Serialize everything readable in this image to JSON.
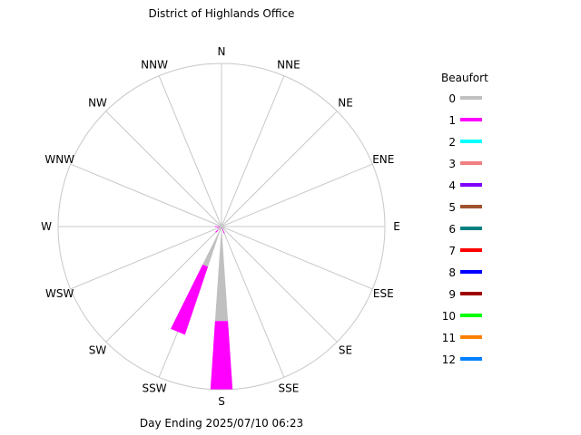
{
  "chart_data": {
    "type": "wind-rose",
    "title": "District of Highlands Office",
    "footer": "Day Ending 2025/07/10 06:23",
    "directions": [
      "N",
      "NNE",
      "NE",
      "ENE",
      "E",
      "ESE",
      "SE",
      "SSE",
      "S",
      "SSW",
      "SW",
      "WSW",
      "W",
      "WNW",
      "NW",
      "NNW"
    ],
    "legend": {
      "title": "Beaufort",
      "entries": [
        {
          "label": "0",
          "color": "#c0c0c0"
        },
        {
          "label": "1",
          "color": "#ff00ff"
        },
        {
          "label": "2",
          "color": "#00ffff"
        },
        {
          "label": "3",
          "color": "#f08080"
        },
        {
          "label": "4",
          "color": "#8000ff"
        },
        {
          "label": "5",
          "color": "#a0522d"
        },
        {
          "label": "6",
          "color": "#008080"
        },
        {
          "label": "7",
          "color": "#ff0000"
        },
        {
          "label": "8",
          "color": "#0000ff"
        },
        {
          "label": "9",
          "color": "#a00000"
        },
        {
          "label": "10",
          "color": "#00ff00"
        },
        {
          "label": "11",
          "color": "#ff8000"
        },
        {
          "label": "12",
          "color": "#0080ff"
        }
      ]
    },
    "rmax": 100,
    "series": [
      {
        "name": "0",
        "values": [
          0,
          0,
          0,
          0,
          0,
          0,
          0,
          0.5,
          58,
          26,
          3,
          1,
          1,
          0,
          0,
          0
        ]
      },
      {
        "name": "1",
        "values": [
          0,
          0,
          0,
          0,
          0,
          0,
          0,
          4,
          42,
          44,
          2,
          2,
          3,
          0,
          0,
          0
        ]
      }
    ],
    "grid": true,
    "legend_position": "right"
  }
}
